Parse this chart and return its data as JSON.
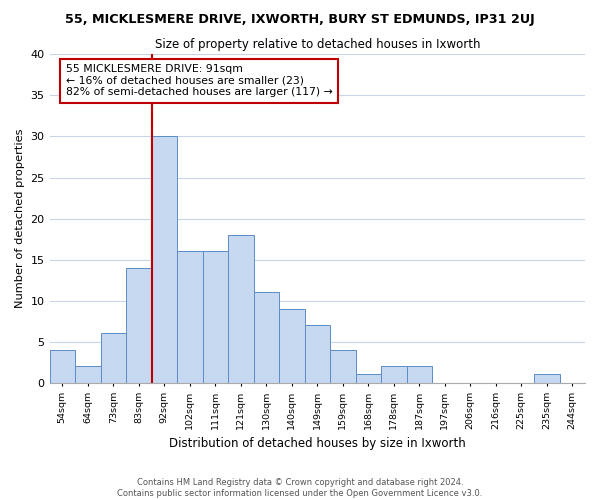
{
  "title": "55, MICKLESMERE DRIVE, IXWORTH, BURY ST EDMUNDS, IP31 2UJ",
  "subtitle": "Size of property relative to detached houses in Ixworth",
  "xlabel": "Distribution of detached houses by size in Ixworth",
  "ylabel": "Number of detached properties",
  "bin_labels": [
    "54sqm",
    "64sqm",
    "73sqm",
    "83sqm",
    "92sqm",
    "102sqm",
    "111sqm",
    "121sqm",
    "130sqm",
    "140sqm",
    "149sqm",
    "159sqm",
    "168sqm",
    "178sqm",
    "187sqm",
    "197sqm",
    "206sqm",
    "216sqm",
    "225sqm",
    "235sqm",
    "244sqm"
  ],
  "counts": [
    4,
    2,
    6,
    14,
    30,
    16,
    16,
    18,
    11,
    9,
    7,
    4,
    1,
    2,
    2,
    0,
    0,
    0,
    0,
    1,
    0
  ],
  "bar_color": "#c6d9f1",
  "bar_edge_color": "#5b8cc8",
  "marker_line_color": "#c00000",
  "annotation_title": "55 MICKLESMERE DRIVE: 91sqm",
  "annotation_line2": "← 16% of detached houses are smaller (23)",
  "annotation_line3": "82% of semi-detached houses are larger (117) →",
  "annotation_box_edge": "#c00000",
  "background_color": "#ffffff",
  "grid_color": "#c8d4e8",
  "footer_line1": "Contains HM Land Registry data © Crown copyright and database right 2024.",
  "footer_line2": "Contains public sector information licensed under the Open Government Licence v3.0.",
  "ylim": [
    0,
    40
  ],
  "yticks": [
    0,
    5,
    10,
    15,
    20,
    25,
    30,
    35,
    40
  ]
}
